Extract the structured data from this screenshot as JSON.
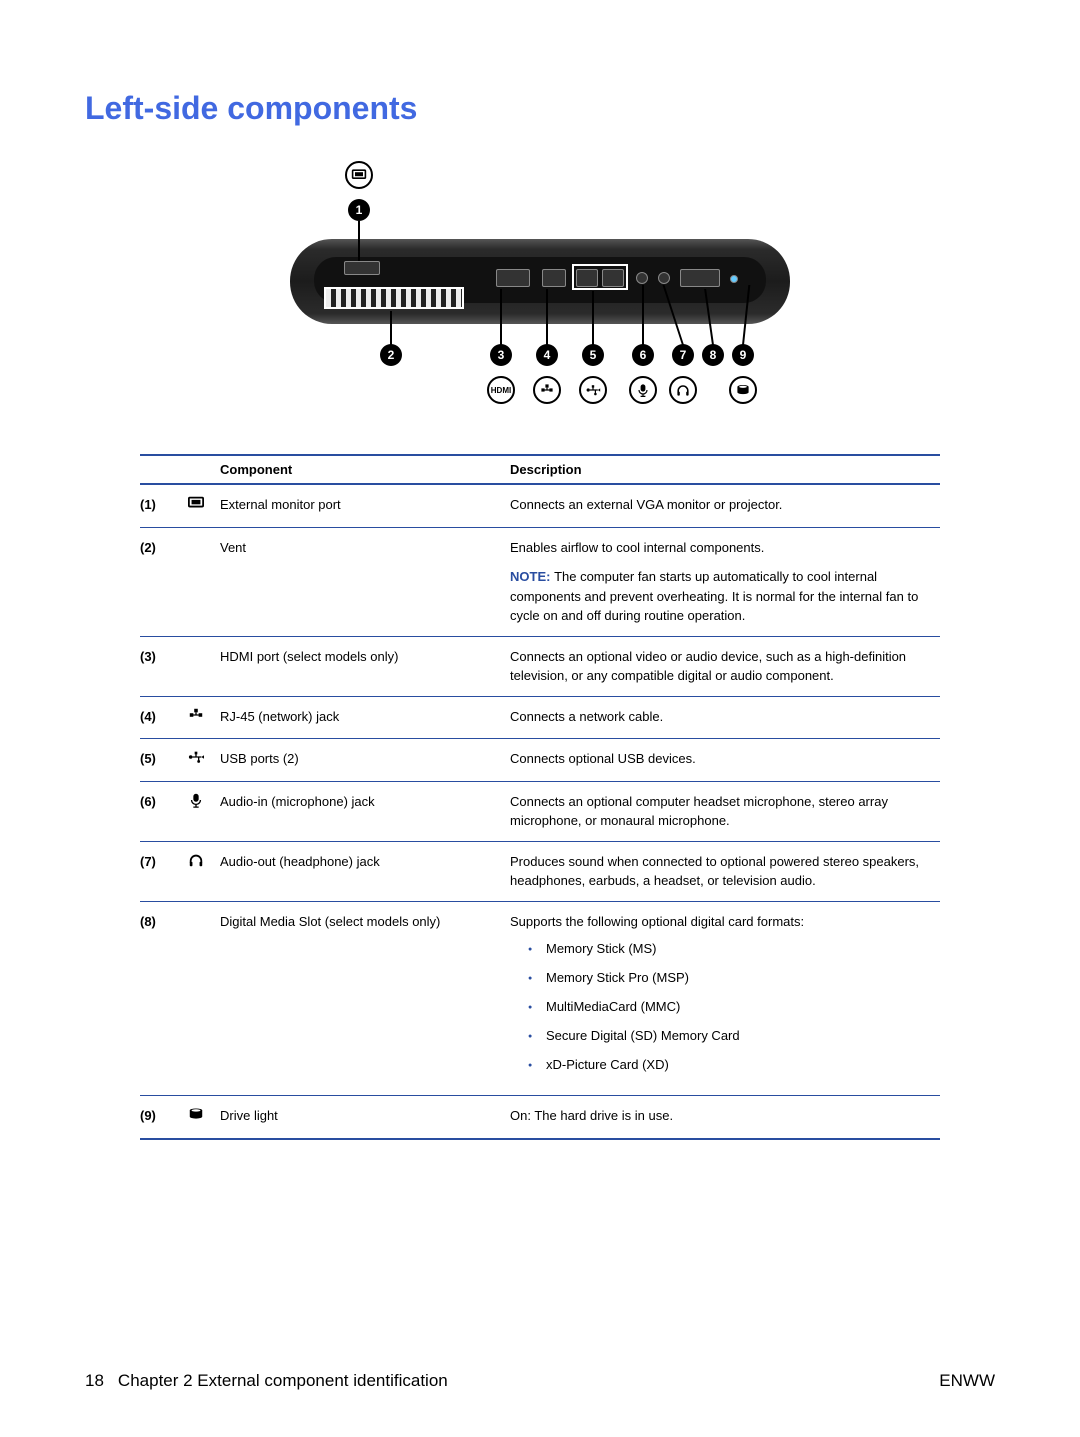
{
  "title": "Left-side components",
  "table": {
    "headers": {
      "component": "Component",
      "description": "Description"
    },
    "rows": [
      {
        "num": "(1)",
        "icon": "monitor",
        "component": "External monitor port",
        "description": "Connects an external VGA monitor or projector."
      },
      {
        "num": "(2)",
        "icon": "",
        "component": "Vent",
        "description": "Enables airflow to cool internal components.",
        "note_label": "NOTE:",
        "note": "The computer fan starts up automatically to cool internal components and prevent overheating. It is normal for the internal fan to cycle on and off during routine operation."
      },
      {
        "num": "(3)",
        "icon": "",
        "component": "HDMI port (select models only)",
        "description": "Connects an optional video or audio device, such as a high-definition television, or any compatible digital or audio component."
      },
      {
        "num": "(4)",
        "icon": "network",
        "component": "RJ-45 (network) jack",
        "description": "Connects a network cable."
      },
      {
        "num": "(5)",
        "icon": "usb",
        "component": "USB ports (2)",
        "description": "Connects optional USB devices."
      },
      {
        "num": "(6)",
        "icon": "mic",
        "component": "Audio-in (microphone) jack",
        "description": "Connects an optional computer headset microphone, stereo array microphone, or monaural microphone."
      },
      {
        "num": "(7)",
        "icon": "headphone",
        "component": "Audio-out (headphone) jack",
        "description": "Produces sound when connected to optional powered stereo speakers, headphones, earbuds, a headset, or television audio."
      },
      {
        "num": "(8)",
        "icon": "",
        "component": "Digital Media Slot (select models only)",
        "description": "Supports the following optional digital card formats:",
        "list": [
          "Memory Stick (MS)",
          "Memory Stick Pro (MSP)",
          "MultiMediaCard (MMC)",
          "Secure Digital (SD) Memory Card",
          "xD-Picture Card (XD)"
        ]
      },
      {
        "num": "(9)",
        "icon": "drive",
        "component": "Drive light",
        "description": "On: The hard drive is in use."
      }
    ]
  },
  "diagram": {
    "callouts": [
      "1",
      "2",
      "3",
      "4",
      "5",
      "6",
      "7",
      "8",
      "9"
    ],
    "hdmi_label": "HDMI"
  },
  "footer": {
    "page": "18",
    "chapter": "Chapter 2   External component identification",
    "tag": "ENWW"
  },
  "colors": {
    "accent": "#294da0",
    "heading": "#4169e1"
  }
}
